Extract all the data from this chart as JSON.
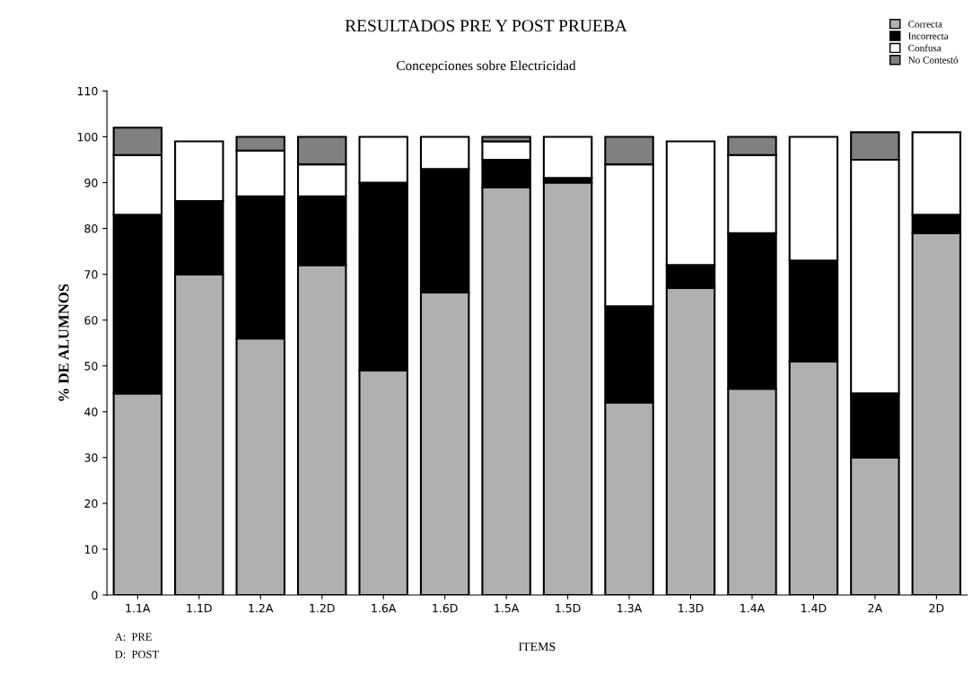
{
  "chart_data": {
    "type": "bar",
    "stacked": true,
    "title": "RESULTADOS PRE Y POST PRUEBA",
    "subtitle": "Concepciones sobre Electricidad",
    "xlabel": "ITEMS",
    "ylabel": "% DE ALUMNOS",
    "categories": [
      "1.1A",
      "1.1D",
      "1.2A",
      "1.2D",
      "1.6A",
      "1.6D",
      "1.5A",
      "1.5D",
      "1.3A",
      "1.3D",
      "1.4A",
      "1.4D",
      "2A",
      "2D"
    ],
    "series": [
      {
        "name": "Correcta",
        "color": "#b0b0b0",
        "values": [
          44,
          70,
          56,
          72,
          49,
          66,
          89,
          90,
          42,
          67,
          45,
          51,
          30,
          79
        ]
      },
      {
        "name": "Incorrecta",
        "color": "#000000",
        "values": [
          39,
          16,
          31,
          15,
          41,
          27,
          6,
          1,
          21,
          5,
          34,
          22,
          14,
          4
        ]
      },
      {
        "name": "Confusa",
        "color": "#ffffff",
        "values": [
          13,
          13,
          10,
          7,
          10,
          7,
          4,
          9,
          31,
          27,
          17,
          27,
          51,
          18
        ]
      },
      {
        "name": "No Contestó",
        "color": "#808080",
        "values": [
          6,
          0,
          3,
          6,
          0,
          0,
          1,
          0,
          6,
          0,
          4,
          0,
          6,
          0
        ]
      }
    ],
    "ylim": [
      0,
      110
    ],
    "yticks": [
      0,
      10,
      20,
      30,
      40,
      50,
      60,
      70,
      80,
      90,
      100,
      110
    ],
    "grid": false,
    "legend": "top right",
    "annotations": [
      "A:  PRE",
      "D:  POST"
    ]
  }
}
